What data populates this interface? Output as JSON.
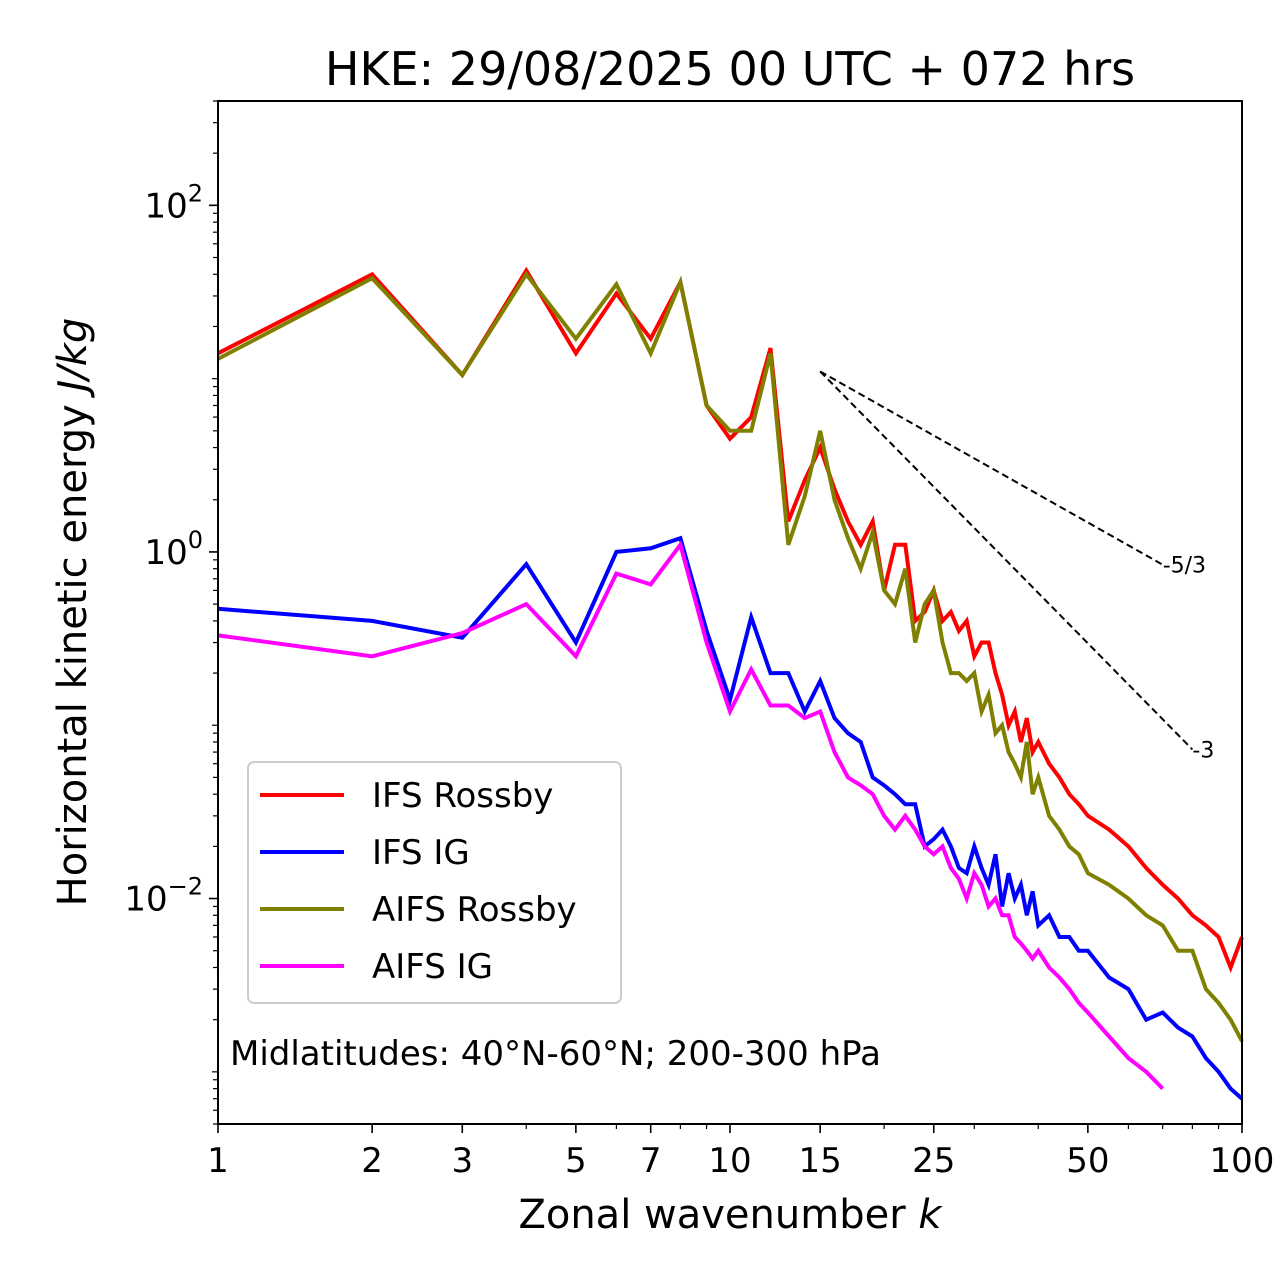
{
  "chart_data": {
    "type": "line",
    "title": "HKE: 29/08/2025 00 UTC + 072 hrs",
    "xlabel": "Zonal wavenumber",
    "xlabel_var": "k",
    "ylabel": "Horizontal kinetic energy",
    "ylabel_units": "J/kg",
    "xscale": "log",
    "yscale": "log",
    "xlim": [
      1,
      100
    ],
    "ylim": [
      0.0005,
      400
    ],
    "x_ticks": [
      1,
      2,
      3,
      5,
      7,
      10,
      15,
      25,
      50,
      100
    ],
    "x_tick_labels": [
      "1",
      "2",
      "3",
      "5",
      "7",
      "10",
      "15",
      "25",
      "50",
      "100"
    ],
    "y_ticks": [
      {
        "value": 100,
        "base": "10",
        "exp": "2"
      },
      {
        "value": 1,
        "base": "10",
        "exp": "0"
      },
      {
        "value": 0.01,
        "base": "10",
        "exp": "−2"
      }
    ],
    "annotation": "Midlatitudes: 40°N-60°N; 200-300 hPa",
    "legend_position": "lower-left",
    "reference_slopes": [
      {
        "label": "-5/3",
        "slope": -1.6667,
        "x_start": 15,
        "x_end": 70,
        "y_start": 11
      },
      {
        "label": "-3",
        "slope": -3,
        "x_start": 15,
        "x_end": 80,
        "y_start": 11
      }
    ],
    "series": [
      {
        "name": "IFS Rossby",
        "color": "#ff0000",
        "x": [
          1,
          2,
          3,
          4,
          5,
          6,
          7,
          8,
          9,
          10,
          11,
          12,
          13,
          14,
          15,
          16,
          17,
          18,
          19,
          20,
          21,
          22,
          23,
          24,
          25,
          26,
          27,
          28,
          29,
          30,
          31,
          32,
          33,
          34,
          35,
          36,
          37,
          38,
          39,
          40,
          42,
          44,
          46,
          48,
          50,
          55,
          60,
          65,
          70,
          75,
          80,
          85,
          90,
          95,
          100
        ],
        "y": [
          14,
          40,
          10.5,
          42,
          14,
          31,
          17,
          36,
          7,
          4.5,
          6,
          15,
          1.5,
          2.6,
          4,
          2.3,
          1.5,
          1.1,
          1.5,
          0.6,
          1.1,
          1.1,
          0.4,
          0.45,
          0.6,
          0.4,
          0.45,
          0.35,
          0.4,
          0.25,
          0.3,
          0.3,
          0.2,
          0.15,
          0.1,
          0.12,
          0.08,
          0.11,
          0.07,
          0.08,
          0.06,
          0.05,
          0.04,
          0.035,
          0.03,
          0.025,
          0.02,
          0.015,
          0.012,
          0.01,
          0.008,
          0.007,
          0.006,
          0.004,
          0.006
        ]
      },
      {
        "name": "IFS IG",
        "color": "#0000ff",
        "x": [
          1,
          2,
          3,
          4,
          5,
          6,
          7,
          8,
          9,
          10,
          11,
          12,
          13,
          14,
          15,
          16,
          17,
          18,
          19,
          20,
          21,
          22,
          23,
          24,
          25,
          26,
          27,
          28,
          29,
          30,
          31,
          32,
          33,
          34,
          35,
          36,
          37,
          38,
          39,
          40,
          42,
          44,
          46,
          48,
          50,
          55,
          60,
          65,
          70,
          75,
          80,
          85,
          90,
          95,
          100
        ],
        "y": [
          0.47,
          0.4,
          0.32,
          0.85,
          0.3,
          1.0,
          1.05,
          1.2,
          0.35,
          0.14,
          0.42,
          0.2,
          0.2,
          0.12,
          0.18,
          0.11,
          0.09,
          0.08,
          0.05,
          0.045,
          0.04,
          0.035,
          0.035,
          0.02,
          0.022,
          0.025,
          0.02,
          0.015,
          0.014,
          0.02,
          0.015,
          0.012,
          0.018,
          0.009,
          0.014,
          0.01,
          0.012,
          0.008,
          0.011,
          0.007,
          0.008,
          0.006,
          0.006,
          0.005,
          0.005,
          0.0035,
          0.003,
          0.002,
          0.0022,
          0.0018,
          0.0016,
          0.0012,
          0.001,
          0.0008,
          0.0007
        ]
      },
      {
        "name": "AIFS Rossby",
        "color": "#808000",
        "x": [
          1,
          2,
          3,
          4,
          5,
          6,
          7,
          8,
          9,
          10,
          11,
          12,
          13,
          14,
          15,
          16,
          17,
          18,
          19,
          20,
          21,
          22,
          23,
          24,
          25,
          26,
          27,
          28,
          29,
          30,
          31,
          32,
          33,
          34,
          35,
          36,
          37,
          38,
          39,
          40,
          42,
          44,
          46,
          48,
          50,
          55,
          60,
          65,
          70,
          75,
          80,
          85,
          90,
          95,
          100
        ],
        "y": [
          13,
          38,
          10.5,
          40,
          17,
          35,
          14,
          36,
          7,
          5,
          5,
          14,
          1.1,
          2.1,
          5,
          2,
          1.2,
          0.8,
          1.3,
          0.6,
          0.5,
          0.8,
          0.3,
          0.5,
          0.6,
          0.3,
          0.2,
          0.2,
          0.18,
          0.2,
          0.12,
          0.15,
          0.09,
          0.1,
          0.07,
          0.06,
          0.05,
          0.08,
          0.04,
          0.05,
          0.03,
          0.025,
          0.02,
          0.018,
          0.014,
          0.012,
          0.01,
          0.008,
          0.007,
          0.005,
          0.005,
          0.003,
          0.0025,
          0.002,
          0.0015
        ]
      },
      {
        "name": "AIFS IG",
        "color": "#ff00ff",
        "x": [
          1,
          2,
          3,
          4,
          5,
          6,
          7,
          8,
          9,
          10,
          11,
          12,
          13,
          14,
          15,
          16,
          17,
          18,
          19,
          20,
          21,
          22,
          23,
          24,
          25,
          26,
          27,
          28,
          29,
          30,
          31,
          32,
          33,
          34,
          35,
          36,
          37,
          38,
          39,
          40,
          42,
          44,
          46,
          48,
          50,
          55,
          60,
          65,
          70
        ],
        "y": [
          0.33,
          0.25,
          0.34,
          0.5,
          0.25,
          0.75,
          0.65,
          1.1,
          0.3,
          0.12,
          0.21,
          0.13,
          0.13,
          0.11,
          0.12,
          0.07,
          0.05,
          0.045,
          0.04,
          0.03,
          0.025,
          0.03,
          0.025,
          0.02,
          0.018,
          0.02,
          0.015,
          0.013,
          0.01,
          0.014,
          0.012,
          0.009,
          0.01,
          0.008,
          0.008,
          0.006,
          0.0055,
          0.005,
          0.0045,
          0.005,
          0.004,
          0.0035,
          0.003,
          0.0025,
          0.0022,
          0.0016,
          0.0012,
          0.001,
          0.0008
        ]
      }
    ]
  }
}
